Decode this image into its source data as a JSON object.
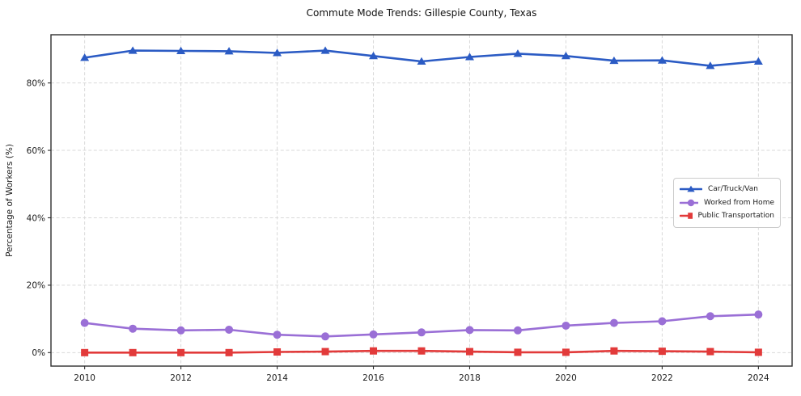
{
  "chart_data": {
    "type": "line",
    "title": "Commute Mode Trends: Gillespie County, Texas",
    "xlabel": "",
    "ylabel": "Percentage of Workers (%)",
    "x": [
      2010,
      2011,
      2012,
      2013,
      2014,
      2015,
      2016,
      2017,
      2018,
      2019,
      2020,
      2021,
      2022,
      2023,
      2024
    ],
    "x_ticks": [
      2010,
      2012,
      2014,
      2016,
      2018,
      2020,
      2022,
      2024
    ],
    "y_ticks": [
      0,
      20,
      40,
      60,
      80
    ],
    "y_tick_suffix": "%",
    "xlim": [
      2009.3,
      2024.7
    ],
    "ylim": [
      -4,
      94.3
    ],
    "grid": true,
    "grid_style": "dashed",
    "legend_position": "center right",
    "series": [
      {
        "name": "Car/Truck/Van",
        "color": "#2b5bc4",
        "marker": "triangle",
        "values": [
          87.5,
          89.6,
          89.5,
          89.4,
          88.9,
          89.6,
          88.0,
          86.4,
          87.7,
          88.7,
          88.0,
          86.6,
          86.7,
          85.1,
          86.4
        ]
      },
      {
        "name": "Worked from Home",
        "color": "#9a6fd6",
        "marker": "circle",
        "values": [
          8.8,
          7.1,
          6.6,
          6.8,
          5.3,
          4.8,
          5.4,
          6.0,
          6.7,
          6.6,
          8.0,
          8.8,
          9.3,
          10.8,
          11.3
        ]
      },
      {
        "name": "Public Transportation",
        "color": "#e23a3a",
        "marker": "square",
        "values": [
          0.0,
          0.0,
          0.0,
          0.0,
          0.2,
          0.3,
          0.5,
          0.5,
          0.3,
          0.1,
          0.1,
          0.5,
          0.4,
          0.3,
          0.1
        ]
      }
    ]
  }
}
